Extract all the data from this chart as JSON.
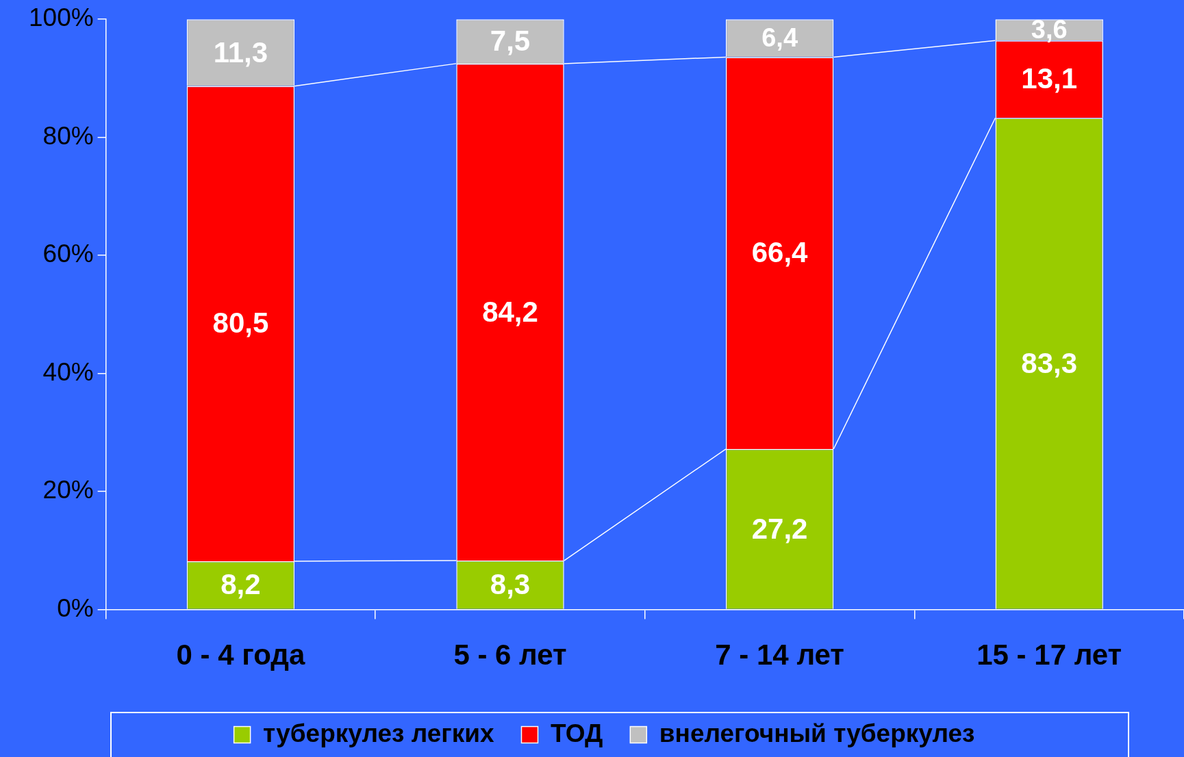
{
  "chart_data": {
    "type": "bar",
    "stacked": true,
    "categories": [
      "0 - 4 года",
      "5 - 6 лет",
      "7 - 14 лет",
      "15 - 17 лет"
    ],
    "series": [
      {
        "name": "туберкулез легких",
        "color": "#99cc00",
        "values": [
          8.2,
          8.3,
          27.2,
          83.3
        ],
        "value_labels": [
          "8,2",
          "8,3",
          "27,2",
          "83,3"
        ]
      },
      {
        "name": "ТОД",
        "color": "#ff0000",
        "values": [
          80.5,
          84.2,
          66.4,
          13.1
        ],
        "value_labels": [
          "80,5",
          "84,2",
          "66,4",
          "13,1"
        ]
      },
      {
        "name": "внелегочный туберкулез",
        "color": "#c0c0c0",
        "values": [
          11.3,
          7.5,
          6.4,
          3.6
        ],
        "value_labels": [
          "11,3",
          "7,5",
          "6,4",
          "3,6"
        ]
      }
    ],
    "ylim": [
      0,
      100
    ],
    "yticks": [
      {
        "value": 0,
        "label": "0%"
      },
      {
        "value": 20,
        "label": "20%"
      },
      {
        "value": 40,
        "label": "40%"
      },
      {
        "value": 60,
        "label": "60%"
      },
      {
        "value": 80,
        "label": "80%"
      },
      {
        "value": 100,
        "label": "100%"
      }
    ],
    "grid": false,
    "legend": "bottom"
  }
}
